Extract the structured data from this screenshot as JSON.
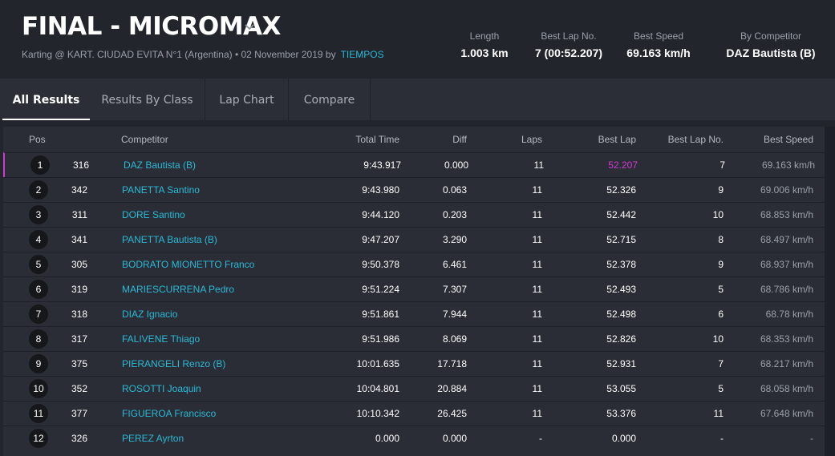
{
  "header": {
    "title": "FINAL - MICROMAX",
    "subtitle": "Karting @ KART. CIUDAD EVITA N°1 (Argentina) • 02 November 2019 by",
    "subtitle_link": "TIEMPOS",
    "stats": [
      {
        "label": "Length",
        "value": "1.003 km"
      },
      {
        "label": "Best Lap No.",
        "value": "7 (00:52.207)"
      },
      {
        "label": "Best Speed",
        "value": "69.163 km/h"
      },
      {
        "label": "By Competitor",
        "value": "DAZ Bautista (B)"
      }
    ]
  },
  "tabs": [
    "All Results",
    "Results By Class",
    "Lap Chart",
    "Compare"
  ],
  "table": {
    "columns": [
      "Pos",
      "Competitor",
      "Total Time",
      "Diff",
      "Laps",
      "Best Lap",
      "Best Lap No.",
      "Best Speed"
    ],
    "rows": [
      {
        "pos": "1",
        "num": "316",
        "name": "DAZ Bautista (B)",
        "total": "9:43.917",
        "diff": "0.000",
        "laps": "11",
        "best": "52.207",
        "bestno": "7",
        "speed": "69.163 km/h"
      },
      {
        "pos": "2",
        "num": "342",
        "name": "PANETTA Santino",
        "total": "9:43.980",
        "diff": "0.063",
        "laps": "11",
        "best": "52.326",
        "bestno": "9",
        "speed": "69.006 km/h"
      },
      {
        "pos": "3",
        "num": "311",
        "name": "DORE Santino",
        "total": "9:44.120",
        "diff": "0.203",
        "laps": "11",
        "best": "52.442",
        "bestno": "10",
        "speed": "68.853 km/h"
      },
      {
        "pos": "4",
        "num": "341",
        "name": "PANETTA Bautista (B)",
        "total": "9:47.207",
        "diff": "3.290",
        "laps": "11",
        "best": "52.715",
        "bestno": "8",
        "speed": "68.497 km/h"
      },
      {
        "pos": "5",
        "num": "305",
        "name": "BODRATO MIONETTO Franco",
        "total": "9:50.378",
        "diff": "6.461",
        "laps": "11",
        "best": "52.378",
        "bestno": "9",
        "speed": "68.937 km/h"
      },
      {
        "pos": "6",
        "num": "319",
        "name": "MARIESCURRENA Pedro",
        "total": "9:51.224",
        "diff": "7.307",
        "laps": "11",
        "best": "52.493",
        "bestno": "5",
        "speed": "68.786 km/h"
      },
      {
        "pos": "7",
        "num": "318",
        "name": "DIAZ Ignacio",
        "total": "9:51.861",
        "diff": "7.944",
        "laps": "11",
        "best": "52.498",
        "bestno": "6",
        "speed": "68.78 km/h"
      },
      {
        "pos": "8",
        "num": "317",
        "name": "FALIVENE Thiago",
        "total": "9:51.986",
        "diff": "8.069",
        "laps": "11",
        "best": "52.826",
        "bestno": "10",
        "speed": "68.353 km/h"
      },
      {
        "pos": "9",
        "num": "375",
        "name": "PIERANGELI Renzo (B)",
        "total": "10:01.635",
        "diff": "17.718",
        "laps": "11",
        "best": "52.931",
        "bestno": "7",
        "speed": "68.217 km/h"
      },
      {
        "pos": "10",
        "num": "352",
        "name": "ROSOTTI Joaquin",
        "total": "10:04.801",
        "diff": "20.884",
        "laps": "11",
        "best": "53.055",
        "bestno": "5",
        "speed": "68.058 km/h"
      },
      {
        "pos": "11",
        "num": "377",
        "name": "FIGUEROA Francisco",
        "total": "10:10.342",
        "diff": "26.425",
        "laps": "11",
        "best": "53.376",
        "bestno": "11",
        "speed": "67.648 km/h"
      },
      {
        "pos": "12",
        "num": "326",
        "name": "PEREZ Ayrton",
        "total": "0.000",
        "diff": "0.000",
        "laps": "-",
        "best": "0.000",
        "bestno": "-",
        "speed": "-"
      }
    ]
  },
  "colors": {
    "accent": "#2bb9d6",
    "best_lap": "#d13ad4",
    "background": "#22252c"
  }
}
